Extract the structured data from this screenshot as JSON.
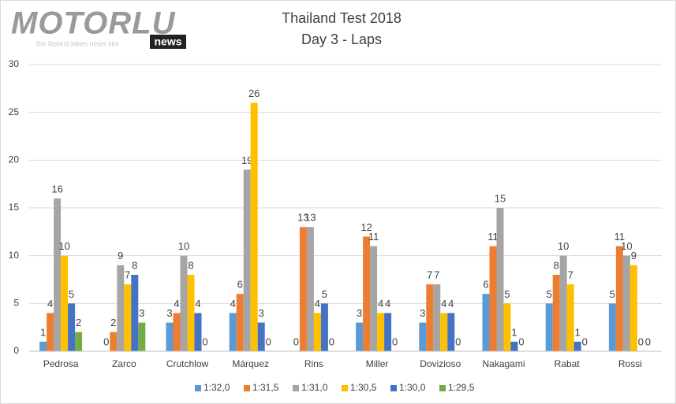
{
  "logo": {
    "name": "MOTORLU",
    "badge": "news",
    "tagline": "the fastest bikes news site"
  },
  "chart_data": {
    "type": "bar",
    "title": "Thailand Test 2018",
    "subtitle": "Day 3 - Laps",
    "categories": [
      "Pedrosa",
      "Zarco",
      "Crutchlow",
      "Márquez",
      "Rins",
      "Miller",
      "Dovizioso",
      "Nakagami",
      "Rabat",
      "Rossi"
    ],
    "series": [
      {
        "name": "1:32,0",
        "color": "#5b9bd5",
        "values": [
          1,
          0,
          3,
          4,
          0,
          3,
          3,
          6,
          5,
          5
        ]
      },
      {
        "name": "1:31,5",
        "color": "#ed7d31",
        "values": [
          4,
          2,
          4,
          6,
          13,
          12,
          7,
          11,
          8,
          11
        ]
      },
      {
        "name": "1:31,0",
        "color": "#a5a5a5",
        "values": [
          16,
          9,
          10,
          19,
          13,
          11,
          7,
          15,
          10,
          10
        ]
      },
      {
        "name": "1:30,5",
        "color": "#ffc000",
        "values": [
          10,
          7,
          8,
          26,
          4,
          4,
          4,
          5,
          7,
          9
        ]
      },
      {
        "name": "1:30,0",
        "color": "#4472c4",
        "values": [
          5,
          8,
          4,
          3,
          5,
          4,
          4,
          1,
          1,
          0
        ]
      },
      {
        "name": "1:29,5",
        "color": "#70ad47",
        "values": [
          2,
          3,
          0,
          0,
          0,
          0,
          0,
          0,
          0,
          0
        ]
      }
    ],
    "ylim": [
      0,
      30
    ],
    "yticks": [
      0,
      5,
      10,
      15,
      20,
      25,
      30
    ],
    "grid": true,
    "legend": "bottom"
  }
}
